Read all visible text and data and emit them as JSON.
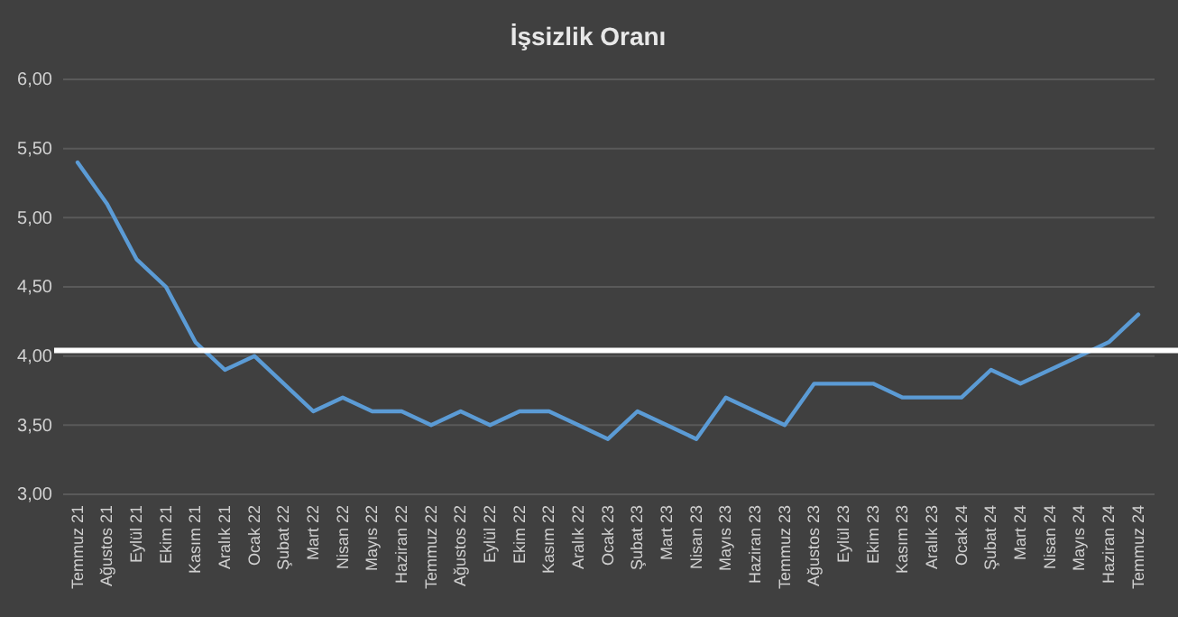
{
  "chart_data": {
    "type": "line",
    "title": "İşsizlik Oranı",
    "categories": [
      "Temmuz 21",
      "Ağustos 21",
      "Eylül 21",
      "Ekim 21",
      "Kasım 21",
      "Aralık 21",
      "Ocak 22",
      "Şubat 22",
      "Mart 22",
      "Nisan 22",
      "Mayıs 22",
      "Haziran 22",
      "Temmuz 22",
      "Ağustos 22",
      "Eylül 22",
      "Ekim 22",
      "Kasım 22",
      "Aralık 22",
      "Ocak 23",
      "Şubat 23",
      "Mart 23",
      "Nisan 23",
      "Mayıs 23",
      "Haziran 23",
      "Temmuz 23",
      "Ağustos 23",
      "Eylül 23",
      "Ekim 23",
      "Kasım 23",
      "Aralık 23",
      "Ocak 24",
      "Şubat 24",
      "Mart 24",
      "Nisan 24",
      "Mayıs 24",
      "Haziran 24",
      "Temmuz 24"
    ],
    "series": [
      {
        "color": "#5b9bd5",
        "values": [
          5.4,
          5.1,
          4.7,
          4.5,
          4.1,
          3.9,
          4.0,
          3.8,
          3.6,
          3.7,
          3.6,
          3.6,
          3.5,
          3.6,
          3.5,
          3.6,
          3.6,
          3.5,
          3.4,
          3.6,
          3.5,
          3.4,
          3.7,
          3.6,
          3.5,
          3.8,
          3.8,
          3.8,
          3.7,
          3.7,
          3.7,
          3.9,
          3.8,
          3.9,
          4.0,
          4.1,
          4.3
        ]
      }
    ],
    "ylim": [
      3,
      6
    ],
    "yticks": [
      {
        "value": 3,
        "label": "3,00"
      },
      {
        "value": 3.5,
        "label": "3,50"
      },
      {
        "value": 4,
        "label": "4,00"
      },
      {
        "value": 4.5,
        "label": "4,50"
      },
      {
        "value": 5,
        "label": "5,00"
      },
      {
        "value": 5.5,
        "label": "5,50"
      },
      {
        "value": 6,
        "label": "6,00"
      }
    ],
    "grid": "y",
    "marker": "none",
    "line_style": "solid",
    "ref_lines": [
      {
        "axis": "y",
        "value": 4.04,
        "color": "#ffffff"
      }
    ]
  }
}
